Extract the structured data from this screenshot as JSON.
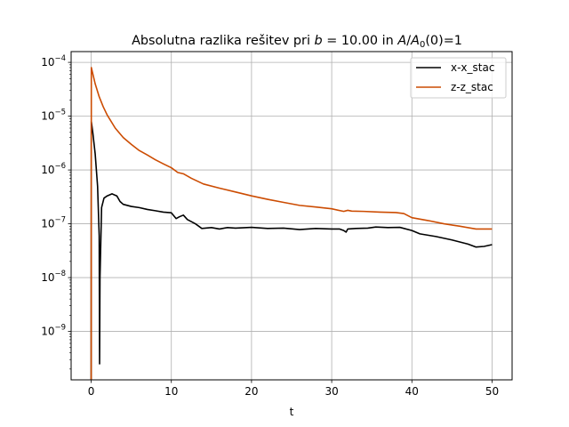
{
  "chart_data": {
    "type": "line",
    "title_parts": {
      "prefix": "Absolutna razlika rešitev pri ",
      "b_sym": "b",
      "b_eq": " = 10.00 in ",
      "a_sym": "A",
      "slash": "/",
      "a0_sym": "A",
      "a0_sub": "0",
      "suffix": "(0)=1"
    },
    "xlabel": "t",
    "ylabel": "",
    "yscale": "log",
    "xlim": [
      -2.5,
      52.5
    ],
    "ylim_log10": [
      -9.9,
      -3.8
    ],
    "grid": true,
    "legend_position": "top-right",
    "xticks": [
      0,
      10,
      20,
      30,
      40,
      50
    ],
    "yticks": [
      {
        "exp": -9,
        "base": "10",
        "label": "−9"
      },
      {
        "exp": -8,
        "base": "10",
        "label": "−8"
      },
      {
        "exp": -7,
        "base": "10",
        "label": "−7"
      },
      {
        "exp": -6,
        "base": "10",
        "label": "−6"
      },
      {
        "exp": -5,
        "base": "10",
        "label": "−5"
      },
      {
        "exp": -4,
        "base": "10",
        "label": "−4"
      }
    ],
    "series": [
      {
        "name": "x-x_stac",
        "color": "#000000",
        "points": [
          [
            0.0,
            1e-10
          ],
          [
            0.02,
            8e-06
          ],
          [
            0.2,
            5e-06
          ],
          [
            0.5,
            2e-06
          ],
          [
            0.8,
            5e-07
          ],
          [
            1.0,
            6e-08
          ],
          [
            1.05,
            2.5e-10
          ],
          [
            1.1,
            1e-08
          ],
          [
            1.3,
            2e-07
          ],
          [
            1.6,
            3e-07
          ],
          [
            2.0,
            3.3e-07
          ],
          [
            2.6,
            3.6e-07
          ],
          [
            3.2,
            3.3e-07
          ],
          [
            3.6,
            2.6e-07
          ],
          [
            4.0,
            2.3e-07
          ],
          [
            5.0,
            2.1e-07
          ],
          [
            6.0,
            2e-07
          ],
          [
            7.0,
            1.85e-07
          ],
          [
            8.0,
            1.75e-07
          ],
          [
            9.0,
            1.65e-07
          ],
          [
            10.0,
            1.6e-07
          ],
          [
            10.6,
            1.25e-07
          ],
          [
            11.0,
            1.35e-07
          ],
          [
            11.5,
            1.45e-07
          ],
          [
            12.0,
            1.2e-07
          ],
          [
            13.0,
            1e-07
          ],
          [
            13.8,
            8.2e-08
          ],
          [
            15.0,
            8.5e-08
          ],
          [
            16.0,
            8e-08
          ],
          [
            17.0,
            8.5e-08
          ],
          [
            18.0,
            8.3e-08
          ],
          [
            20.0,
            8.6e-08
          ],
          [
            22.0,
            8.2e-08
          ],
          [
            24.0,
            8.3e-08
          ],
          [
            26.0,
            7.8e-08
          ],
          [
            28.0,
            8.2e-08
          ],
          [
            30.0,
            8e-08
          ],
          [
            31.0,
            8e-08
          ],
          [
            31.5,
            7.5e-08
          ],
          [
            31.8,
            7e-08
          ],
          [
            32.0,
            8e-08
          ],
          [
            33.0,
            8.2e-08
          ],
          [
            34.5,
            8.3e-08
          ],
          [
            35.5,
            8.7e-08
          ],
          [
            37.0,
            8.5e-08
          ],
          [
            38.5,
            8.6e-08
          ],
          [
            40.0,
            7.5e-08
          ],
          [
            41.0,
            6.5e-08
          ],
          [
            43.0,
            5.8e-08
          ],
          [
            45.0,
            5e-08
          ],
          [
            47.0,
            4.2e-08
          ],
          [
            48.0,
            3.7e-08
          ],
          [
            49.0,
            3.8e-08
          ],
          [
            50.0,
            4.1e-08
          ]
        ]
      },
      {
        "name": "z-z_stac",
        "color": "#cc4c02",
        "points": [
          [
            0.0,
            1e-10
          ],
          [
            0.02,
            8e-05
          ],
          [
            0.5,
            4e-05
          ],
          [
            1.0,
            2.3e-05
          ],
          [
            1.5,
            1.5e-05
          ],
          [
            2.0,
            1.05e-05
          ],
          [
            3.0,
            6e-06
          ],
          [
            4.0,
            4e-06
          ],
          [
            5.0,
            3e-06
          ],
          [
            6.0,
            2.3e-06
          ],
          [
            7.0,
            1.9e-06
          ],
          [
            8.0,
            1.55e-06
          ],
          [
            9.0,
            1.3e-06
          ],
          [
            10.0,
            1.1e-06
          ],
          [
            10.8,
            9e-07
          ],
          [
            11.5,
            8.5e-07
          ],
          [
            12.5,
            7e-07
          ],
          [
            14.0,
            5.5e-07
          ],
          [
            16.0,
            4.6e-07
          ],
          [
            18.0,
            3.9e-07
          ],
          [
            20.0,
            3.3e-07
          ],
          [
            22.0,
            2.85e-07
          ],
          [
            24.0,
            2.5e-07
          ],
          [
            26.0,
            2.2e-07
          ],
          [
            28.0,
            2.05e-07
          ],
          [
            30.0,
            1.9e-07
          ],
          [
            31.5,
            1.7e-07
          ],
          [
            32.0,
            1.78e-07
          ],
          [
            32.5,
            1.72e-07
          ],
          [
            34.0,
            1.7e-07
          ],
          [
            36.0,
            1.65e-07
          ],
          [
            38.0,
            1.62e-07
          ],
          [
            39.0,
            1.55e-07
          ],
          [
            40.0,
            1.3e-07
          ],
          [
            42.0,
            1.15e-07
          ],
          [
            44.0,
            1e-07
          ],
          [
            46.0,
            9e-08
          ],
          [
            48.0,
            8e-08
          ],
          [
            50.0,
            8e-08
          ]
        ]
      }
    ]
  }
}
